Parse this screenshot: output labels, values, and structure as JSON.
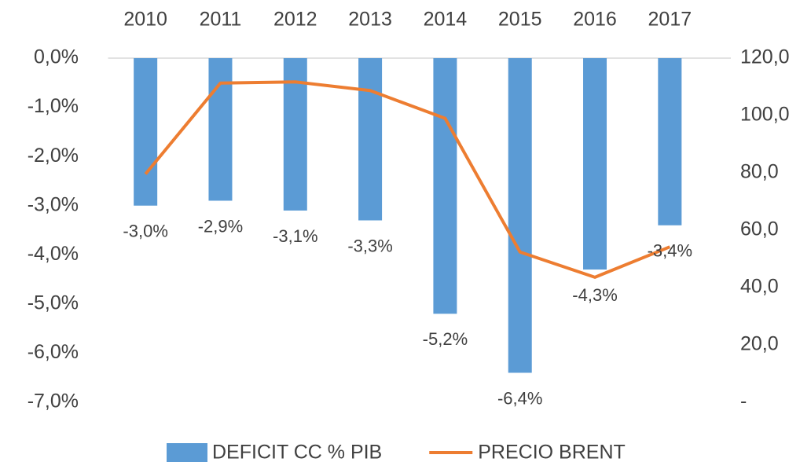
{
  "chart_data": {
    "type": "bar",
    "categories": [
      "2010",
      "2011",
      "2012",
      "2013",
      "2014",
      "2015",
      "2016",
      "2017"
    ],
    "series": [
      {
        "name": "DEFICIT CC % PIB",
        "type": "bar",
        "color": "#5b9bd5",
        "values": [
          -3.0,
          -2.9,
          -3.1,
          -3.3,
          -5.2,
          -6.4,
          -4.3,
          -3.4
        ],
        "value_labels": [
          "-3,0%",
          "-2,9%",
          "-3,1%",
          "-3,3%",
          "-5,2%",
          "-6,4%",
          "-4,3%",
          "-3,4%"
        ]
      },
      {
        "name": "PRECIO BRENT",
        "type": "line",
        "axis": "y2",
        "color": "#ed7d31",
        "values": [
          79.6,
          111.3,
          111.7,
          108.7,
          99.0,
          52.4,
          43.6,
          54.2
        ]
      }
    ],
    "ylim": [
      -7,
      0
    ],
    "yticks": [
      {
        "value": 0,
        "label": "0,0%"
      },
      {
        "value": -1,
        "label": "-1,0%"
      },
      {
        "value": -2,
        "label": "-2,0%"
      },
      {
        "value": -3,
        "label": "-3,0%"
      },
      {
        "value": -4,
        "label": "-4,0%"
      },
      {
        "value": -5,
        "label": "-5,0%"
      },
      {
        "value": -6,
        "label": "-6,0%"
      },
      {
        "value": -7,
        "label": "-7,0%"
      }
    ],
    "y2lim": [
      0,
      120
    ],
    "y2ticks": [
      {
        "value": 120,
        "label": "120,0"
      },
      {
        "value": 100,
        "label": "100,0"
      },
      {
        "value": 80,
        "label": "80,0"
      },
      {
        "value": 60,
        "label": "60,0"
      },
      {
        "value": 40,
        "label": "40,0"
      },
      {
        "value": 20,
        "label": "20,0"
      },
      {
        "value": 0,
        "label": "-"
      }
    ],
    "grid": false,
    "legend": "bottom"
  }
}
